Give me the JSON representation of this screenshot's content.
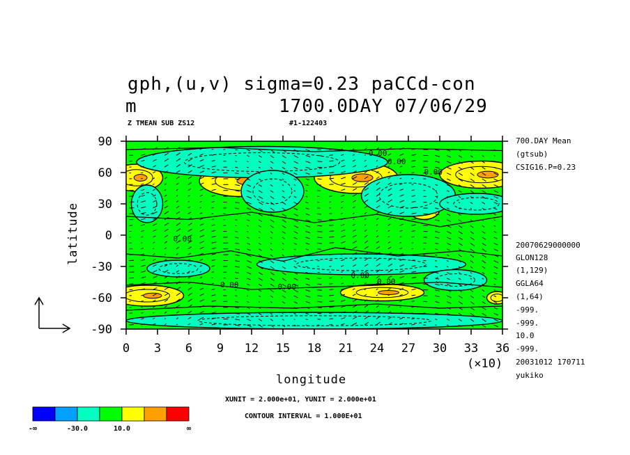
{
  "title": {
    "line1": "gph,(u,v) sigma=0.23 paCCd-con",
    "line2_left": "m",
    "line2_right": "1700.0DAY 07/06/29"
  },
  "subtitle": {
    "left": "Z TMEAN SUB ZS12",
    "right": "#1-122403"
  },
  "side_info": [
    "700.DAY Mean",
    "(gtsub)",
    "CSIG16.P=0.23"
  ],
  "side_meta": [
    "20070629000000",
    "GLON128",
    "(1,129)",
    "GGLA64",
    "(1,64)",
    "-999.",
    "-999.",
    "10.0",
    "-999.",
    "20031012 170711",
    "yukiko"
  ],
  "footer": {
    "units": "XUNIT = 2.000e+01, YUNIT = 2.000e+01",
    "contour": "CONTOUR INTERVAL = 1.000E+01"
  },
  "colorbar": {
    "colors": [
      "#0000ff",
      "#00a0ff",
      "#00ffc0",
      "#00ff00",
      "#ffff00",
      "#ffa000",
      "#ff0000"
    ],
    "labels": [
      "-∞",
      "-30.0",
      "10.0",
      "∞"
    ]
  },
  "chart_data": {
    "type": "heatmap",
    "xlabel": "longitude",
    "ylabel": "latitude",
    "x_ticks": [
      "0",
      "3",
      "6",
      "9",
      "12",
      "15",
      "18",
      "21",
      "24",
      "27",
      "30",
      "33",
      "36"
    ],
    "x_multiplier": "(×10)",
    "y_ticks": [
      "90",
      "60",
      "30",
      "0",
      "-30",
      "-60",
      "-90"
    ],
    "xlim": [
      0,
      360
    ],
    "ylim": [
      -90,
      90
    ],
    "contour_labels": [
      "0.00",
      "0.00",
      "0.00",
      "0.00",
      "0.00",
      "0.00",
      "0.00",
      "0.00"
    ],
    "regions": [
      {
        "level": "positive",
        "lon": 10,
        "lat": 55,
        "dlon": 25,
        "dlat": 13
      },
      {
        "level": "positive",
        "lon": 110,
        "lat": 52,
        "dlon": 40,
        "dlat": 15
      },
      {
        "level": "positive",
        "lon": 220,
        "lat": 55,
        "dlon": 40,
        "dlat": 15
      },
      {
        "level": "positive",
        "lon": 340,
        "lat": 58,
        "dlon": 40,
        "dlat": 13
      },
      {
        "level": "positive",
        "lon": 285,
        "lat": 25,
        "dlon": 15,
        "dlat": 10
      },
      {
        "level": "positive",
        "lon": 20,
        "lat": -58,
        "dlon": 35,
        "dlat": 10
      },
      {
        "level": "positive",
        "lon": 245,
        "lat": -55,
        "dlon": 40,
        "dlat": 8
      },
      {
        "level": "positive",
        "lon": 355,
        "lat": -60,
        "dlon": 10,
        "dlat": 6
      },
      {
        "level": "negative",
        "lon": 130,
        "lat": 70,
        "dlon": 120,
        "dlat": 15
      },
      {
        "level": "negative",
        "lon": 140,
        "lat": 42,
        "dlon": 30,
        "dlat": 20
      },
      {
        "level": "negative",
        "lon": 270,
        "lat": 38,
        "dlon": 45,
        "dlat": 20
      },
      {
        "level": "negative",
        "lon": 335,
        "lat": 30,
        "dlon": 35,
        "dlat": 10
      },
      {
        "level": "negative",
        "lon": 50,
        "lat": -32,
        "dlon": 30,
        "dlat": 8
      },
      {
        "level": "negative",
        "lon": 225,
        "lat": -28,
        "dlon": 100,
        "dlat": 10
      },
      {
        "level": "negative",
        "lon": 315,
        "lat": -43,
        "dlon": 30,
        "dlat": 10
      },
      {
        "level": "negative",
        "lon": 180,
        "lat": -82,
        "dlon": 180,
        "dlat": 8
      },
      {
        "level": "negative",
        "lon": 20,
        "lat": 30,
        "dlon": 15,
        "dlat": 18
      }
    ]
  }
}
